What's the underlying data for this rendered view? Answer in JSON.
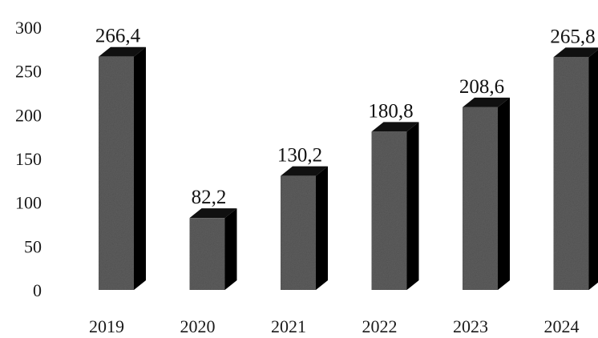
{
  "chart_data": {
    "type": "bar",
    "categories": [
      "2019",
      "2020",
      "2021",
      "2022",
      "2023",
      "2024"
    ],
    "values": [
      266.4,
      82.2,
      130.2,
      180.8,
      208.6,
      265.8
    ],
    "data_labels": [
      "266,4",
      "82,2",
      "130,2",
      "180,8",
      "208,6",
      "265,8"
    ],
    "title": "",
    "xlabel": "",
    "ylabel": "",
    "ylim": [
      0,
      300
    ],
    "yticks": [
      0,
      50,
      100,
      150,
      200,
      250,
      300
    ],
    "grid": false,
    "legend": "none",
    "bar_style": "3d",
    "colors": {
      "bar_front": "#5e5e5e",
      "bar_top": "#101010",
      "bar_side": "#000000",
      "text": "#111111"
    }
  }
}
